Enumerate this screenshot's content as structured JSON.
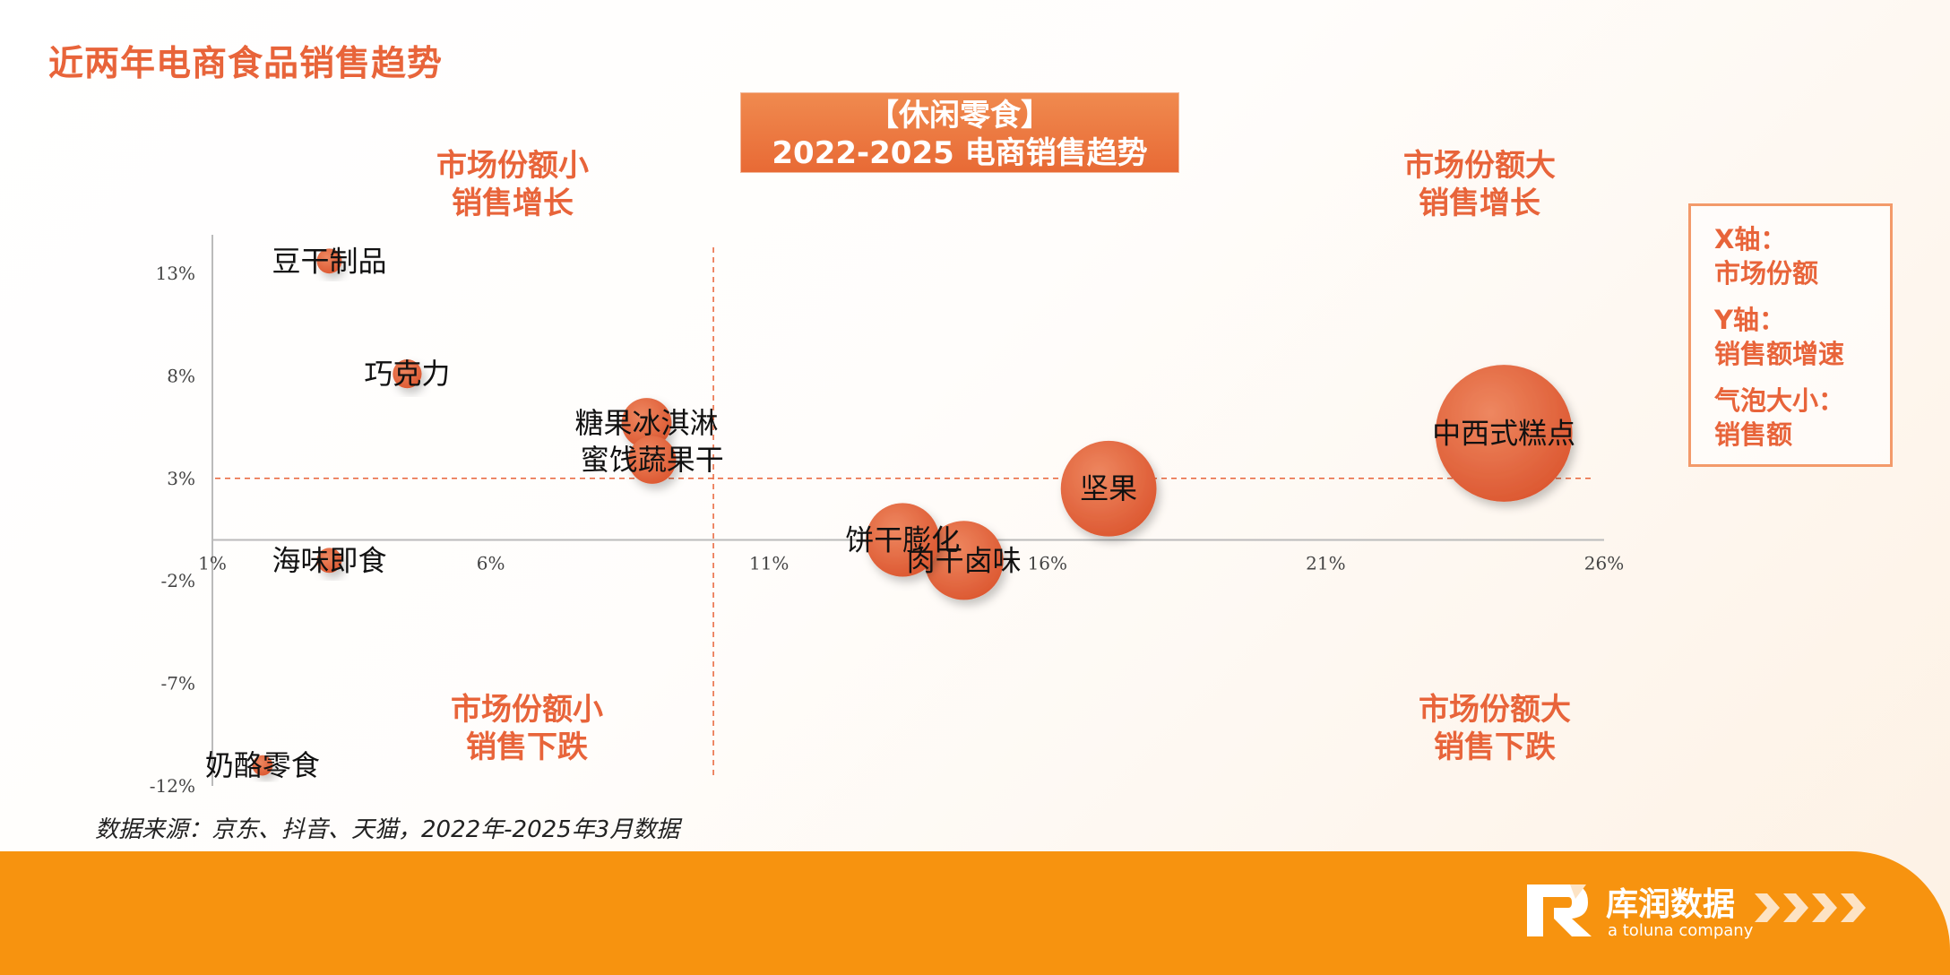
{
  "page": {
    "title": "近两年电商食品销售趋势",
    "box_title_line1": "【休闲零食】",
    "box_title_line2": "2022-2025 电商销售趋势",
    "source": "数据来源：京东、抖音、天猫，2022年-2025年3月数据"
  },
  "quadrants": {
    "top_left": [
      "市场份额小",
      "销售增长"
    ],
    "top_right": [
      "市场份额大",
      "销售增长"
    ],
    "bottom_left": [
      "市场份额小",
      "销售下跌"
    ],
    "bottom_right": [
      "市场份额大",
      "销售下跌"
    ]
  },
  "legend": {
    "x_title": "X轴：",
    "x_desc": "市场份额",
    "y_title": "Y轴：",
    "y_desc": "销售额增速",
    "size_title": "气泡大小：",
    "size_desc": "销售额"
  },
  "brand": {
    "name_cn": "库润数据",
    "name_en": "a toluna company"
  },
  "colors": {
    "accent": "#e8643a",
    "bubble": "#e2623c",
    "footer": "#f7930f"
  },
  "chart_data": {
    "type": "scatter",
    "x_ticks": [
      "1%",
      "6%",
      "11%",
      "16%",
      "21%",
      "26%"
    ],
    "y_ticks": [
      "13%",
      "8%",
      "3%",
      "-2%",
      "-7%",
      "-12%"
    ],
    "xlim": [
      1,
      26
    ],
    "ylim": [
      -12,
      13
    ],
    "x_divider": 10,
    "y_divider": 3,
    "grid": false,
    "points": [
      {
        "name": "豆干制品",
        "x": 3.1,
        "y": 13.6,
        "size": 0.6
      },
      {
        "name": "巧克力",
        "x": 4.5,
        "y": 8.1,
        "size": 0.8
      },
      {
        "name": "糖果冰淇淋",
        "x": 8.8,
        "y": 5.7,
        "size": 2.4
      },
      {
        "name": "蜜饯蔬果干",
        "x": 8.9,
        "y": 3.9,
        "size": 2.2
      },
      {
        "name": "海味即食",
        "x": 3.1,
        "y": -1.0,
        "size": 0.6
      },
      {
        "name": "奶酪零食",
        "x": 1.9,
        "y": -11.0,
        "size": 0.4
      },
      {
        "name": "饼干膨化",
        "x": 13.4,
        "y": 0.0,
        "size": 5.2
      },
      {
        "name": "肉干卤味",
        "x": 14.5,
        "y": -1.0,
        "size": 6.0
      },
      {
        "name": "坚果",
        "x": 17.1,
        "y": 2.5,
        "size": 8.8
      },
      {
        "name": "中西式糕点",
        "x": 24.2,
        "y": 5.2,
        "size": 18.0
      }
    ]
  }
}
